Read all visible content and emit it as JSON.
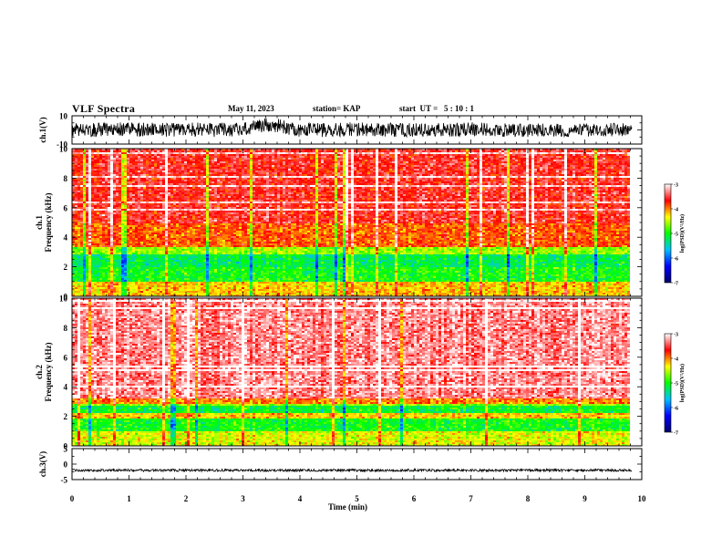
{
  "header": {
    "title": "VLF Spectra",
    "date": "May 11, 2023",
    "station": "station= KAP",
    "start_ut": "start  UT =   5 : 10 : 1"
  },
  "colorbar": {
    "label": "log(PSD)(V²/Hz)",
    "ticks": [
      "-3",
      "-4",
      "-5",
      "-6",
      "-7"
    ],
    "range": [
      -7,
      -3
    ],
    "colors": [
      "#000066",
      "#0000ff",
      "#00c0ff",
      "#00ff00",
      "#ffff00",
      "#ff0000",
      "#ffffff"
    ]
  },
  "chart_data": [
    {
      "type": "line",
      "panel": "ch1-waveform",
      "ylabel": "ch.1(V)",
      "ylim": [
        -10,
        10
      ],
      "ytick_labels": [
        "10",
        "-10"
      ],
      "xlim": [
        0,
        9.83
      ],
      "series": [
        {
          "x": [
            0,
            0.5,
            1,
            1.5,
            2,
            2.5,
            3,
            3.3,
            3.5,
            3.7,
            4,
            4.5,
            5,
            5.5,
            6,
            6.5,
            7,
            7.5,
            8,
            8.5,
            9,
            9.5,
            9.83
          ],
          "y": [
            0,
            0,
            0.5,
            0,
            0.5,
            0,
            0.5,
            3,
            4,
            2,
            0,
            0,
            0.5,
            0,
            0,
            0,
            0.5,
            0,
            0,
            0,
            0,
            0,
            0
          ],
          "amplitude_V": 5
        }
      ]
    },
    {
      "type": "heatmap",
      "panel": "ch1-spectrogram",
      "ylabel": "ch.1\nFrequency (kHz)",
      "ylim": [
        0,
        10
      ],
      "ytick_labels": [
        "10",
        "8",
        "6",
        "4",
        "2",
        "0"
      ],
      "xlim": [
        0,
        9.83
      ],
      "bands": [
        {
          "f": [
            5.0,
            10.0
          ],
          "log_psd": -3.6
        },
        {
          "f": [
            3.3,
            5.0
          ],
          "log_psd": -3.9
        },
        {
          "f": [
            2.8,
            3.3
          ],
          "log_psd": -4.6
        },
        {
          "f": [
            2.0,
            2.8
          ],
          "log_psd": -5.2
        },
        {
          "f": [
            1.0,
            2.0
          ],
          "log_psd": -5.0
        },
        {
          "f": [
            0.0,
            1.0
          ],
          "log_psd": -4.2
        }
      ]
    },
    {
      "type": "heatmap",
      "panel": "ch2-spectrogram",
      "ylabel": "ch.2\nFrequency (kHz)",
      "ylim": [
        0,
        10
      ],
      "ytick_labels": [
        "10",
        "8",
        "6",
        "4",
        "2",
        "0"
      ],
      "xlim": [
        0,
        9.83
      ],
      "bands": [
        {
          "f": [
            3.2,
            10.0
          ],
          "log_psd": -3.3
        },
        {
          "f": [
            2.8,
            3.2
          ],
          "log_psd": -4.0
        },
        {
          "f": [
            2.2,
            2.8
          ],
          "log_psd": -5.1
        },
        {
          "f": [
            1.8,
            2.2
          ],
          "log_psd": -4.2
        },
        {
          "f": [
            1.0,
            1.8
          ],
          "log_psd": -5.0
        },
        {
          "f": [
            0.0,
            1.0
          ],
          "log_psd": -4.4
        }
      ]
    },
    {
      "type": "line",
      "panel": "ch3-waveform",
      "ylabel": "ch.3(V)",
      "ylim": [
        -5,
        5
      ],
      "ytick_labels": [
        "5",
        "0",
        "-5"
      ],
      "xlim": [
        0,
        9.83
      ],
      "series": [
        {
          "x": [
            0,
            9.83
          ],
          "y": [
            -2,
            -2
          ],
          "amplitude_V": 0.4
        }
      ]
    }
  ],
  "xaxis": {
    "label": "Time (min)",
    "ticks": [
      "0",
      "1",
      "2",
      "3",
      "4",
      "5",
      "6",
      "7",
      "8",
      "9",
      "10"
    ],
    "range": [
      0,
      10
    ]
  }
}
